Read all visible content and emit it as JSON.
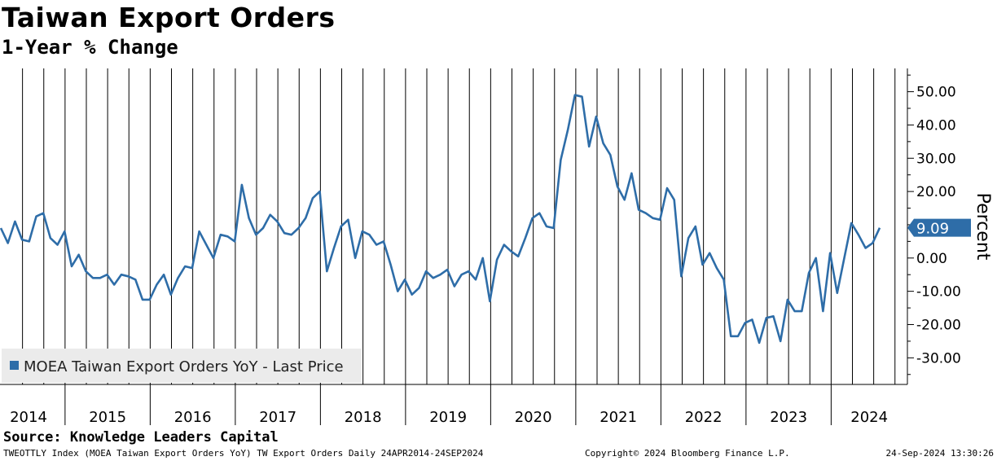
{
  "chart_data": {
    "type": "line",
    "title": "Taiwan Export Orders",
    "subtitle": "1-Year % Change",
    "ylabel": "Percent",
    "ylim": [
      -38,
      57
    ],
    "yticks": [
      50,
      40,
      30,
      20,
      10,
      0,
      -10,
      -20,
      -30
    ],
    "ytick_labels": [
      "50.00",
      "40.00",
      "30.00",
      "20.00",
      "10.00",
      "0.00",
      "-10.00",
      "-20.00",
      "-30.00"
    ],
    "xlabels": [
      "2014",
      "2015",
      "2016",
      "2017",
      "2018",
      "2019",
      "2020",
      "2021",
      "2022",
      "2023",
      "2024"
    ],
    "x_start": 2014.25,
    "x_end": 2024.75,
    "last_value": 9.09,
    "last_value_label": "9.09",
    "line_color": "#2E6DA8",
    "series": [
      {
        "name": "MOEA Taiwan Export Orders YoY - Last Price",
        "values": [
          9,
          4.5,
          11,
          5.5,
          5,
          12.5,
          13.5,
          6,
          4,
          8,
          -2.5,
          1,
          -4,
          -6,
          -6,
          -5,
          -8,
          -5,
          -5.5,
          -6.5,
          -12.5,
          -12.5,
          -8,
          -5,
          -11,
          -6,
          -2.5,
          -3,
          8,
          4,
          0,
          7,
          6.5,
          5,
          22,
          12,
          7,
          9,
          13,
          11,
          7.5,
          7,
          9,
          12,
          18,
          20,
          -4,
          3,
          9.5,
          11.5,
          0,
          8,
          7,
          4,
          5,
          -2,
          -10,
          -6.5,
          -11,
          -9,
          -4,
          -6,
          -5,
          -3.5,
          -8.5,
          -5,
          -4,
          -6.5,
          0,
          -13,
          -0.5,
          4,
          2,
          0.5,
          6,
          12,
          13.5,
          9.5,
          9,
          29.5,
          38.5,
          49,
          48.5,
          33.5,
          42.5,
          34.5,
          31,
          21.5,
          17.5,
          25.5,
          14.5,
          13.5,
          12,
          11.5,
          21,
          17.5,
          -5.5,
          6,
          9.5,
          -2,
          1.5,
          -3,
          -6.5,
          -23.5,
          -23.5,
          -19.5,
          -18.5,
          -25.5,
          -18,
          -17.5,
          -25,
          -12.5,
          -16,
          -16,
          -4.5,
          0,
          -16,
          1.5,
          -10.5,
          0,
          10.5,
          7,
          3,
          4.5,
          9.09
        ]
      }
    ],
    "legend": "bottom-left"
  },
  "source": "Source: Knowledge Leaders Capital",
  "footer_left": "TWEOTTLY Index (MOEA Taiwan Export Orders YoY) TW Export Orders  Daily 24APR2014-24SEP2024",
  "footer_mid": "Copyright© 2024 Bloomberg Finance L.P.",
  "footer_right": "24-Sep-2024 13:30:26"
}
